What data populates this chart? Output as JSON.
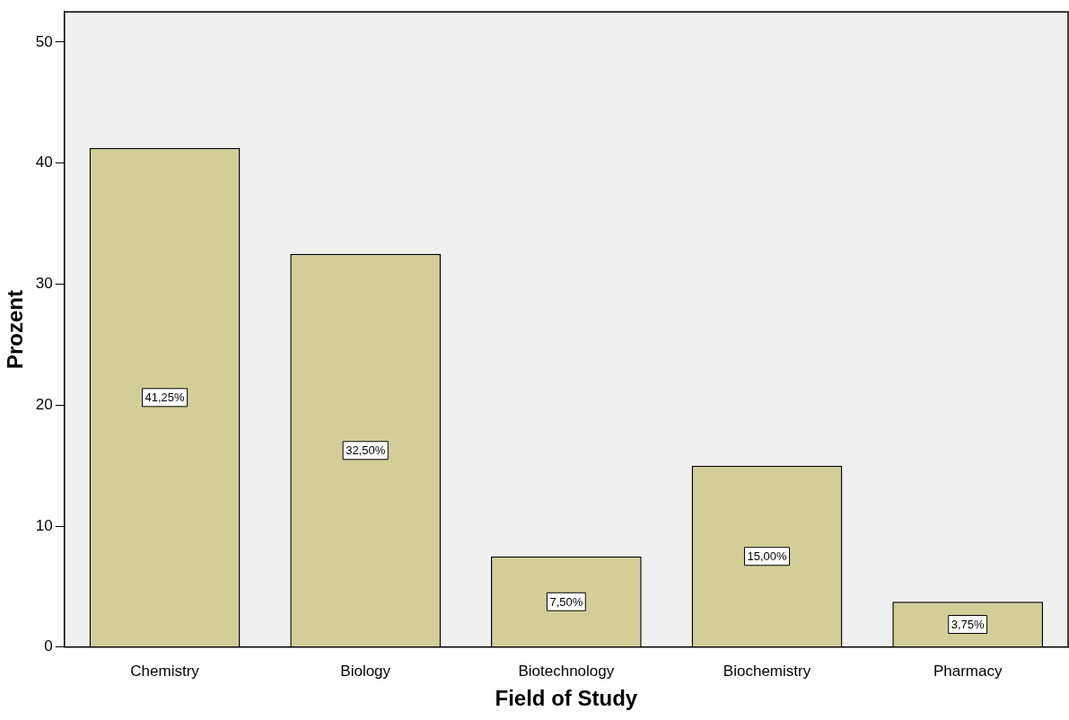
{
  "chart_data": {
    "type": "bar",
    "xlabel": "Field of Study",
    "ylabel": "Prozent",
    "categories": [
      "Chemistry",
      "Biology",
      "Biotechnology",
      "Biochemistry",
      "Pharmacy"
    ],
    "values": [
      41.25,
      32.5,
      7.5,
      15,
      3.75
    ],
    "value_labels": [
      "41,25%",
      "32,50%",
      "7,50%",
      "15,00%",
      "3,75%"
    ],
    "color": "#d3ce97",
    "ylim": [
      0,
      52.5
    ],
    "yticks": [
      0,
      10,
      20,
      30,
      40,
      50
    ],
    "grid": false,
    "legend": false
  }
}
